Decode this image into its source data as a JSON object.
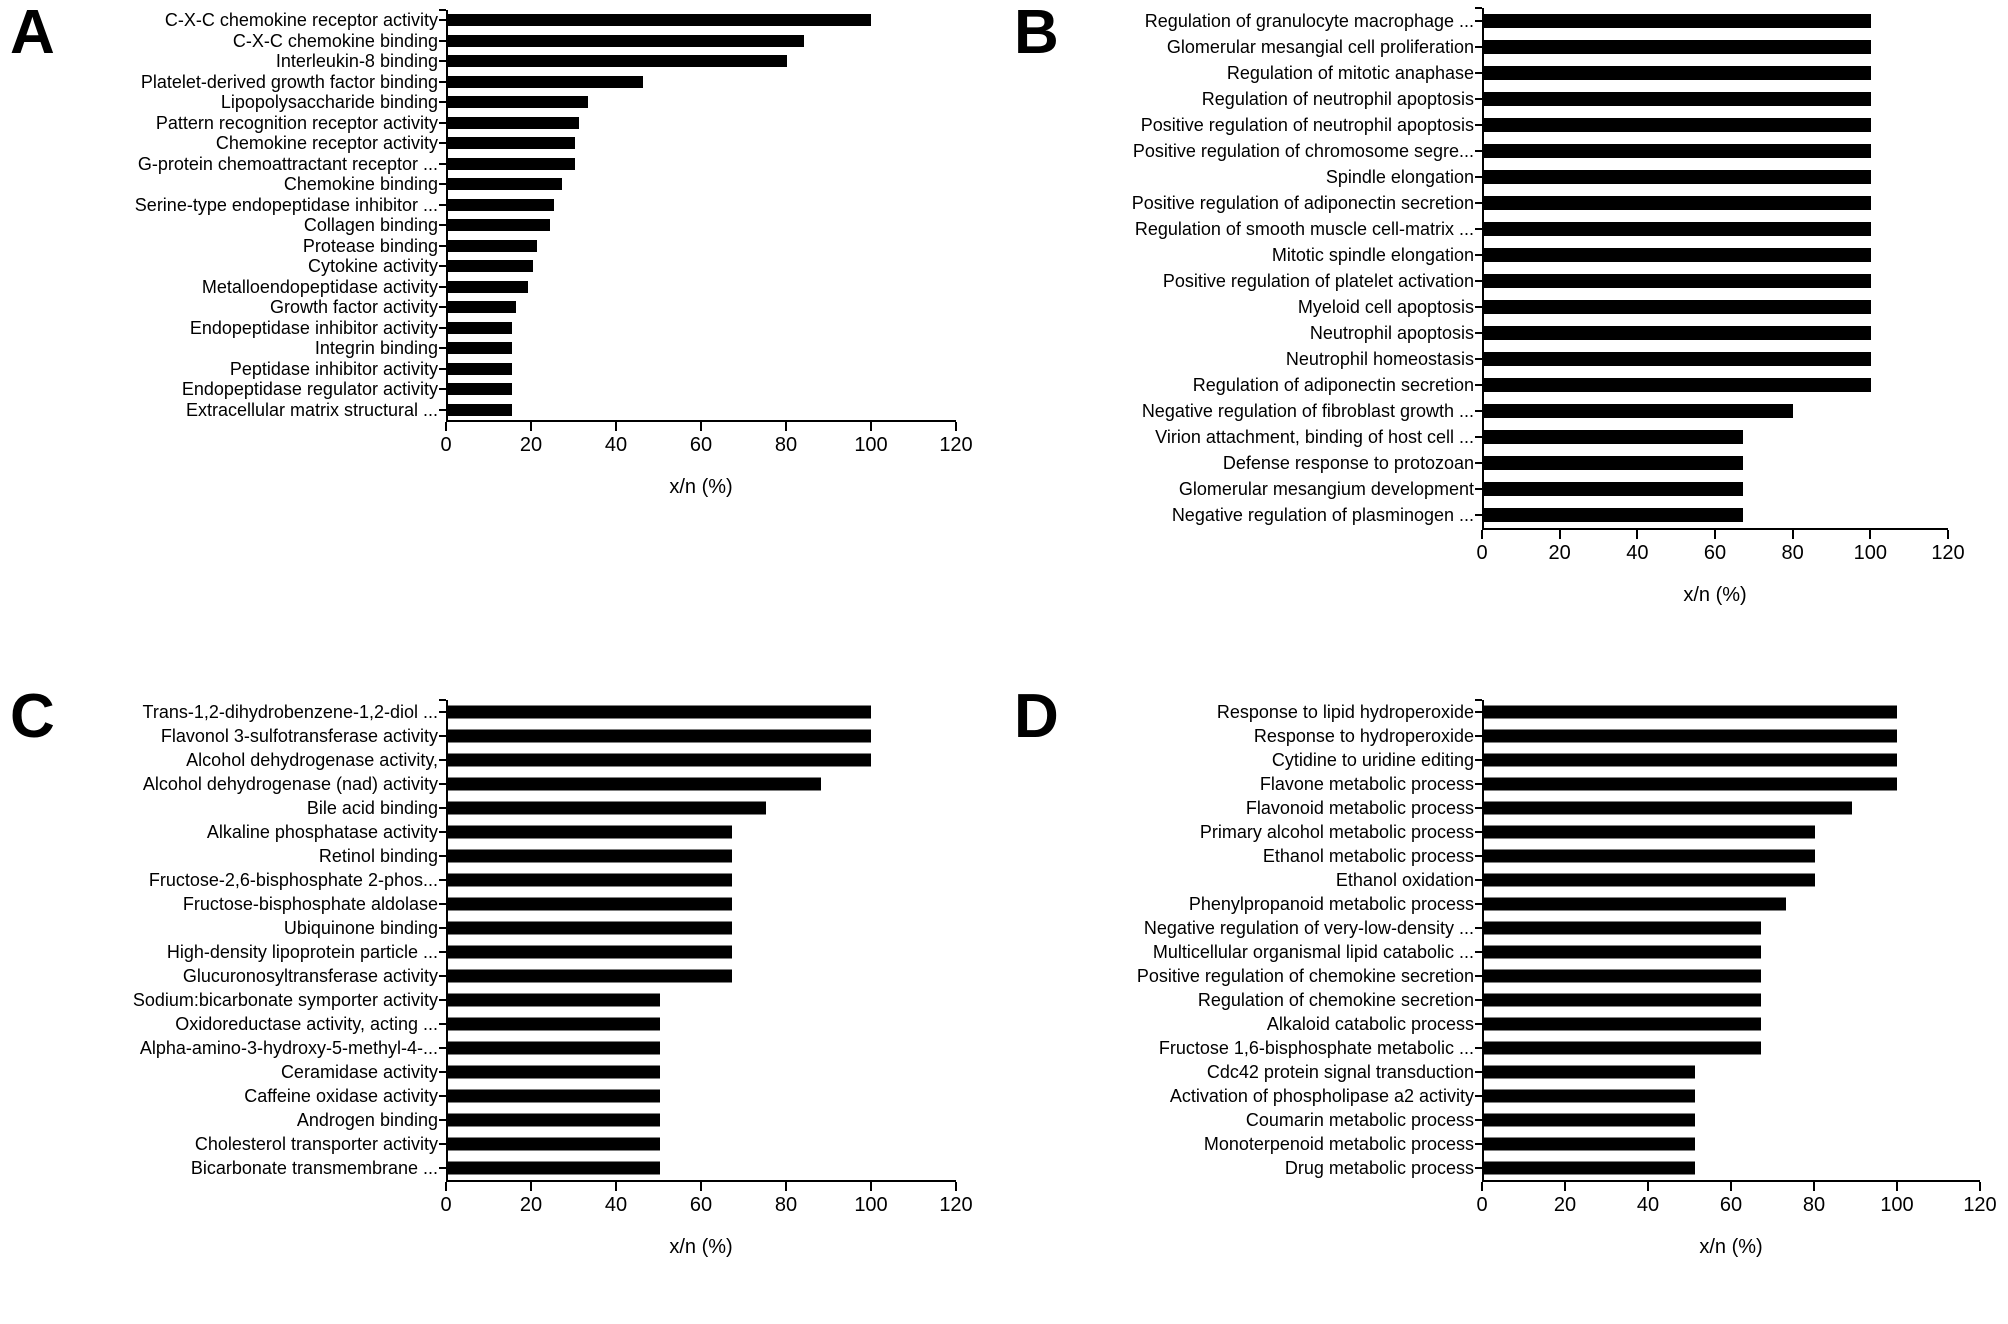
{
  "figure": {
    "background": "#ffffff",
    "bar_color": "#000000",
    "grid": "off",
    "legend": "none",
    "panel_letters": [
      "A",
      "B",
      "C",
      "D"
    ]
  },
  "chart_data": [
    {
      "type": "bar",
      "orientation": "horizontal",
      "panel_label": "A",
      "xlabel": "x/n (%)",
      "xlim": [
        0,
        120
      ],
      "x_ticks": [
        0,
        20,
        40,
        60,
        80,
        100,
        120
      ],
      "categories": [
        "C-X-C chemokine receptor activity",
        "C-X-C chemokine binding",
        "Interleukin-8 binding",
        "Platelet-derived growth factor binding",
        "Lipopolysaccharide binding",
        "Pattern recognition receptor activity",
        "Chemokine receptor activity",
        "G-protein chemoattractant receptor ...",
        "Chemokine binding",
        "Serine-type endopeptidase inhibitor ...",
        "Collagen binding",
        "Protease binding",
        "Cytokine activity",
        "Metalloendopeptidase activity",
        "Growth factor activity",
        "Endopeptidase inhibitor activity",
        "Integrin binding",
        "Peptidase inhibitor activity",
        "Endopeptidase regulator activity",
        "Extracellular matrix structural ..."
      ],
      "values": [
        100,
        84,
        80,
        46,
        33,
        31,
        30,
        30,
        27,
        25,
        24,
        21,
        20,
        19,
        16,
        15,
        15,
        15,
        15,
        15
      ]
    },
    {
      "type": "bar",
      "orientation": "horizontal",
      "panel_label": "B",
      "xlabel": "x/n (%)",
      "xlim": [
        0,
        120
      ],
      "x_ticks": [
        0,
        20,
        40,
        60,
        80,
        100,
        120
      ],
      "categories": [
        "Regulation of granulocyte macrophage ...",
        "Glomerular mesangial cell proliferation",
        "Regulation of mitotic anaphase",
        "Regulation of neutrophil apoptosis",
        "Positive regulation of neutrophil apoptosis",
        "Positive regulation of chromosome segre...",
        "Spindle elongation",
        "Positive regulation of adiponectin secretion",
        "Regulation of smooth muscle cell-matrix ...",
        "Mitotic spindle elongation",
        "Positive regulation of platelet activation",
        "Myeloid cell apoptosis",
        "Neutrophil apoptosis",
        "Neutrophil homeostasis",
        "Regulation of adiponectin secretion",
        "Negative regulation of fibroblast growth ...",
        "Virion attachment, binding of host cell ...",
        "Defense response to protozoan",
        "Glomerular mesangium development",
        "Negative regulation of plasminogen ..."
      ],
      "values": [
        100,
        100,
        100,
        100,
        100,
        100,
        100,
        100,
        100,
        100,
        100,
        100,
        100,
        100,
        100,
        80,
        67,
        67,
        67,
        67
      ]
    },
    {
      "type": "bar",
      "orientation": "horizontal",
      "panel_label": "C",
      "xlabel": "x/n (%)",
      "xlim": [
        0,
        120
      ],
      "x_ticks": [
        0,
        20,
        40,
        60,
        80,
        100,
        120
      ],
      "categories": [
        "Trans-1,2-dihydrobenzene-1,2-diol ...",
        "Flavonol 3-sulfotransferase activity",
        "Alcohol dehydrogenase activity,",
        "Alcohol dehydrogenase (nad) activity",
        "Bile acid binding",
        "Alkaline phosphatase activity",
        "Retinol binding",
        "Fructose-2,6-bisphosphate 2-phos...",
        "Fructose-bisphosphate aldolase",
        "Ubiquinone binding",
        "High-density lipoprotein particle ...",
        "Glucuronosyltransferase activity",
        "Sodium:bicarbonate symporter activity",
        "Oxidoreductase activity, acting ...",
        "Alpha-amino-3-hydroxy-5-methyl-4-...",
        "Ceramidase activity",
        "Caffeine oxidase activity",
        "Androgen binding",
        "Cholesterol transporter activity",
        "Bicarbonate transmembrane ..."
      ],
      "values": [
        100,
        100,
        100,
        88,
        75,
        67,
        67,
        67,
        67,
        67,
        67,
        67,
        50,
        50,
        50,
        50,
        50,
        50,
        50,
        50
      ]
    },
    {
      "type": "bar",
      "orientation": "horizontal",
      "panel_label": "D",
      "xlabel": "x/n (%)",
      "xlim": [
        0,
        120
      ],
      "x_ticks": [
        0,
        20,
        40,
        60,
        80,
        100,
        120
      ],
      "categories": [
        "Response to lipid hydroperoxide",
        "Response to hydroperoxide",
        "Cytidine to uridine editing",
        "Flavone metabolic process",
        "Flavonoid metabolic process",
        "Primary alcohol metabolic process",
        "Ethanol metabolic process",
        "Ethanol oxidation",
        "Phenylpropanoid metabolic process",
        "Negative regulation of very-low-density ...",
        "Multicellular organismal lipid catabolic ...",
        "Positive regulation of chemokine secretion",
        "Regulation of chemokine secretion",
        "Alkaloid catabolic process",
        "Fructose 1,6-bisphosphate metabolic ...",
        "Cdc42 protein signal transduction",
        "Activation of phospholipase a2 activity",
        "Coumarin metabolic process",
        "Monoterpenoid metabolic process",
        "Drug metabolic process"
      ],
      "values": [
        100,
        100,
        100,
        100,
        89,
        80,
        80,
        80,
        73,
        67,
        67,
        67,
        67,
        67,
        67,
        51,
        51,
        51,
        51,
        51
      ]
    }
  ]
}
